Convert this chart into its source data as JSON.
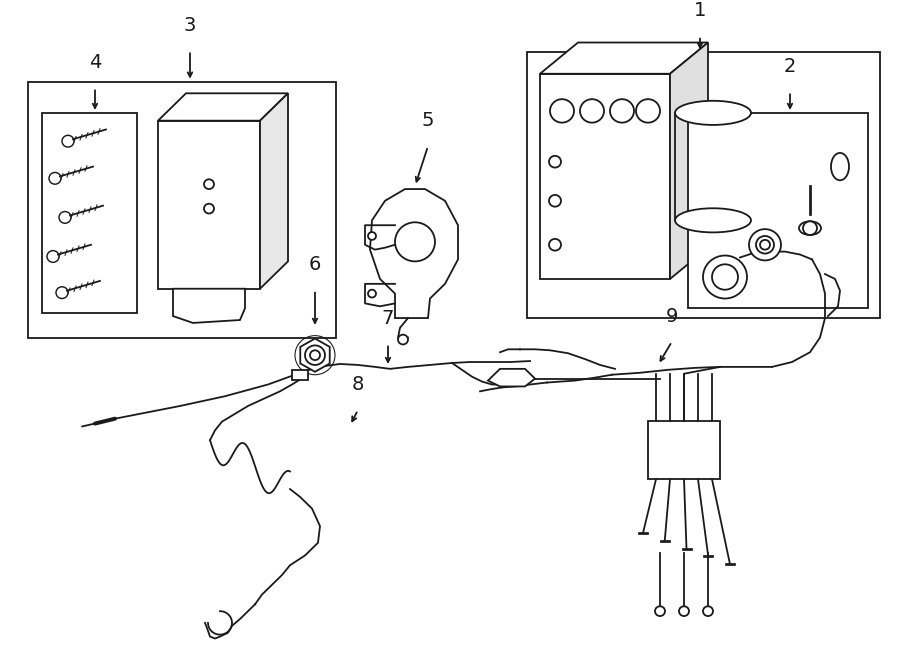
{
  "bg_color": "#ffffff",
  "lc": "#1a1a1a",
  "lw": 1.3,
  "fig_width": 9.0,
  "fig_height": 6.61,
  "dpi": 100
}
